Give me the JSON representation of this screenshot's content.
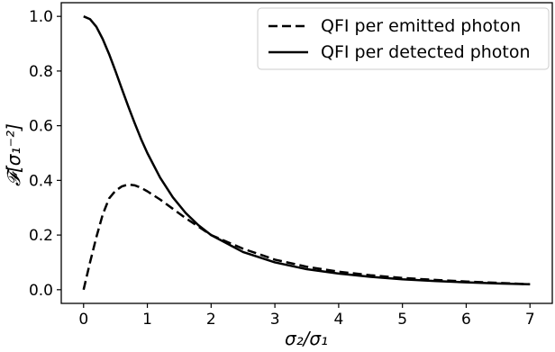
{
  "chart_data": {
    "type": "line",
    "title": "",
    "xlabel": "σ₂/σ₁",
    "ylabel": "𝓕[σ₁⁻²]",
    "xlim": [
      -0.35,
      7.35
    ],
    "ylim": [
      -0.05,
      1.05
    ],
    "xticks": [
      "0",
      "1",
      "2",
      "3",
      "4",
      "5",
      "6",
      "7"
    ],
    "yticks": [
      "0.0",
      "0.2",
      "0.4",
      "0.6",
      "0.8",
      "1.0"
    ],
    "grid": false,
    "legend": "top-right",
    "series": [
      {
        "name": "QFI per emitted photon",
        "style": "dashed",
        "color": "#000000",
        "x": [
          0,
          0.1,
          0.2,
          0.3,
          0.4,
          0.5,
          0.6,
          0.7,
          0.8,
          0.9,
          1.0,
          1.2,
          1.4,
          1.6,
          1.8,
          2.0,
          2.5,
          3.0,
          3.5,
          4.0,
          4.5,
          5.0,
          5.5,
          6.0,
          6.5,
          7.0
        ],
        "y": [
          0.0,
          0.099,
          0.192,
          0.275,
          0.334,
          0.362,
          0.378,
          0.385,
          0.382,
          0.373,
          0.36,
          0.33,
          0.296,
          0.262,
          0.231,
          0.2,
          0.15,
          0.11,
          0.084,
          0.066,
          0.053,
          0.043,
          0.036,
          0.03,
          0.025,
          0.02
        ]
      },
      {
        "name": "QFI per detected photon",
        "style": "solid",
        "color": "#000000",
        "x": [
          0,
          0.1,
          0.2,
          0.3,
          0.4,
          0.5,
          0.6,
          0.7,
          0.8,
          0.9,
          1.0,
          1.2,
          1.4,
          1.6,
          1.8,
          2.0,
          2.5,
          3.0,
          3.5,
          4.0,
          4.5,
          5.0,
          5.5,
          6.0,
          6.5,
          7.0
        ],
        "y": [
          1.0,
          0.99,
          0.962,
          0.917,
          0.862,
          0.8,
          0.735,
          0.671,
          0.61,
          0.552,
          0.5,
          0.41,
          0.338,
          0.281,
          0.236,
          0.2,
          0.138,
          0.1,
          0.075,
          0.059,
          0.047,
          0.038,
          0.032,
          0.027,
          0.023,
          0.02
        ]
      }
    ]
  }
}
